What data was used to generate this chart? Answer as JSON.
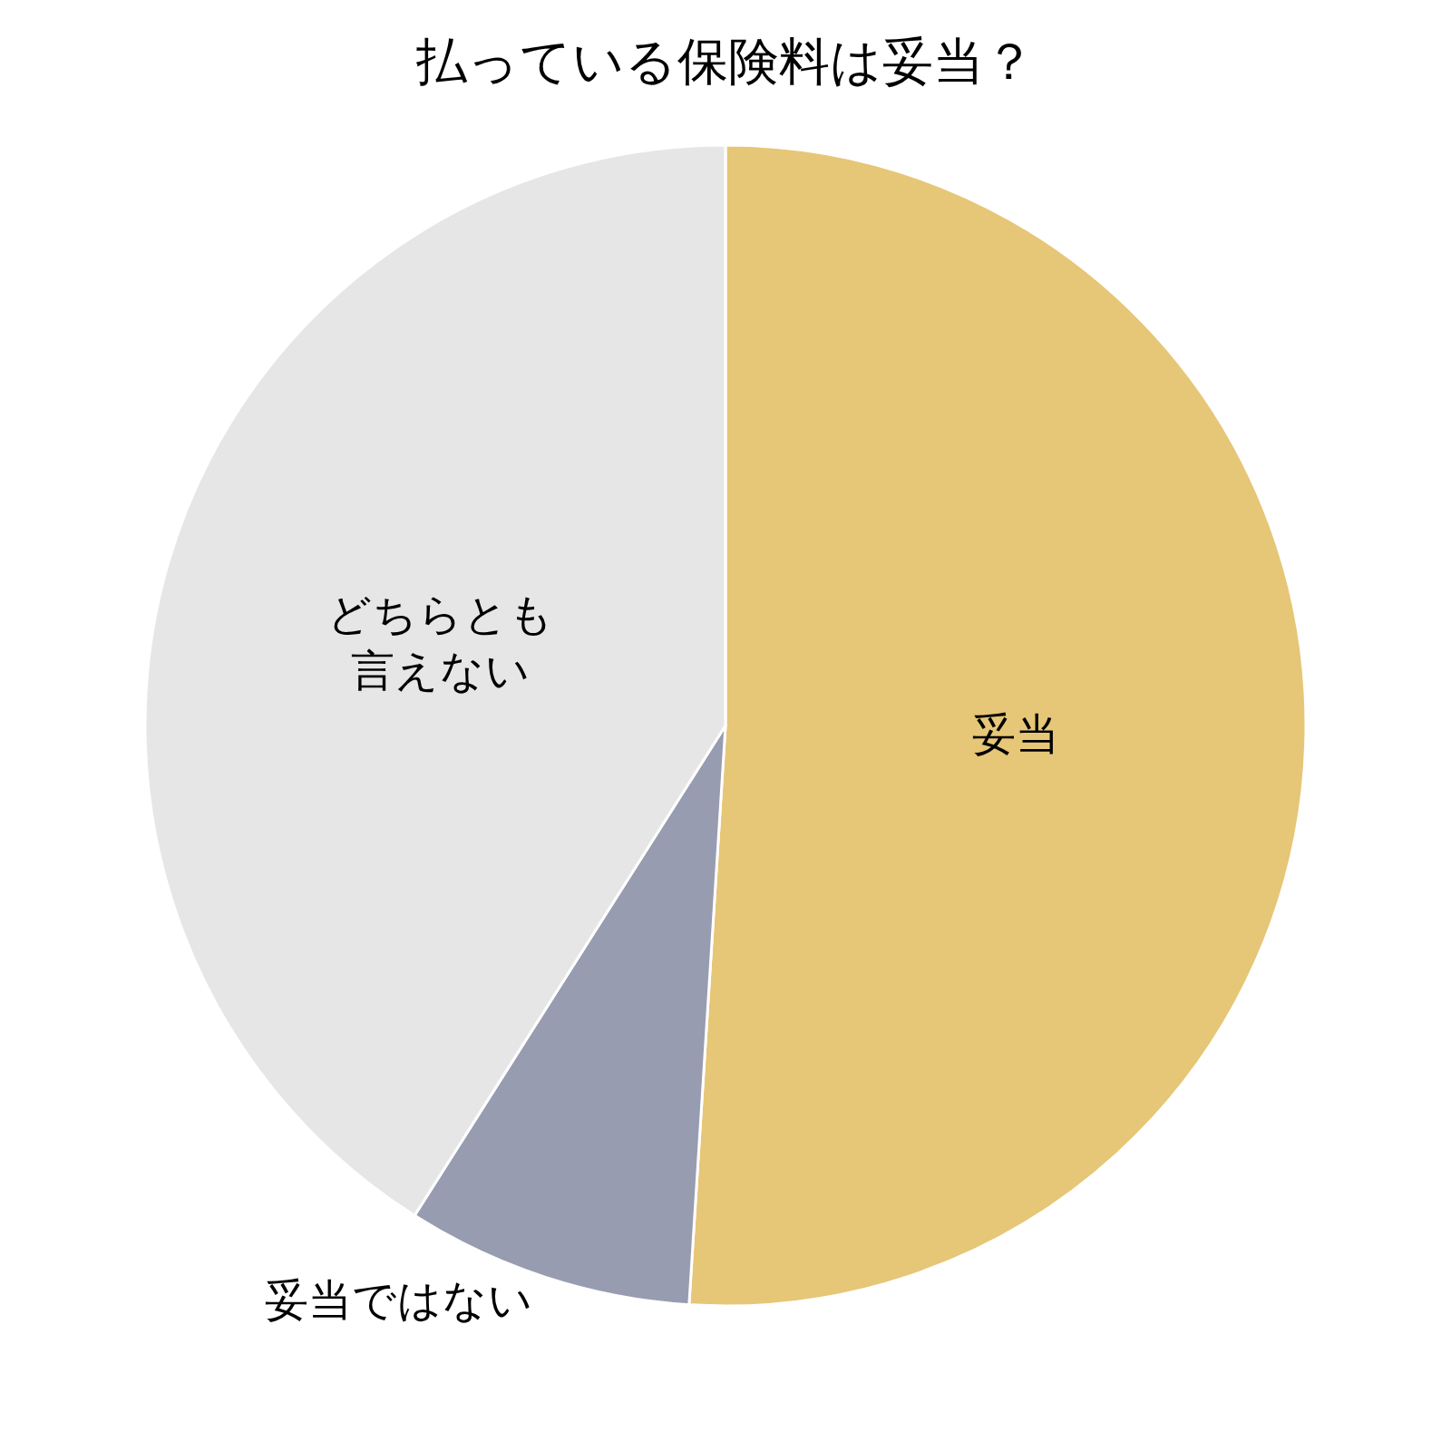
{
  "chart_data": {
    "type": "pie",
    "title": "払っている保険料は妥当？",
    "categories": [
      "妥当",
      "妥当ではない",
      "どちらとも言えない"
    ],
    "values": [
      51,
      8,
      41
    ],
    "colors": [
      "#e6c677",
      "#979cb0",
      "#e6e6e6"
    ],
    "legend": false
  }
}
